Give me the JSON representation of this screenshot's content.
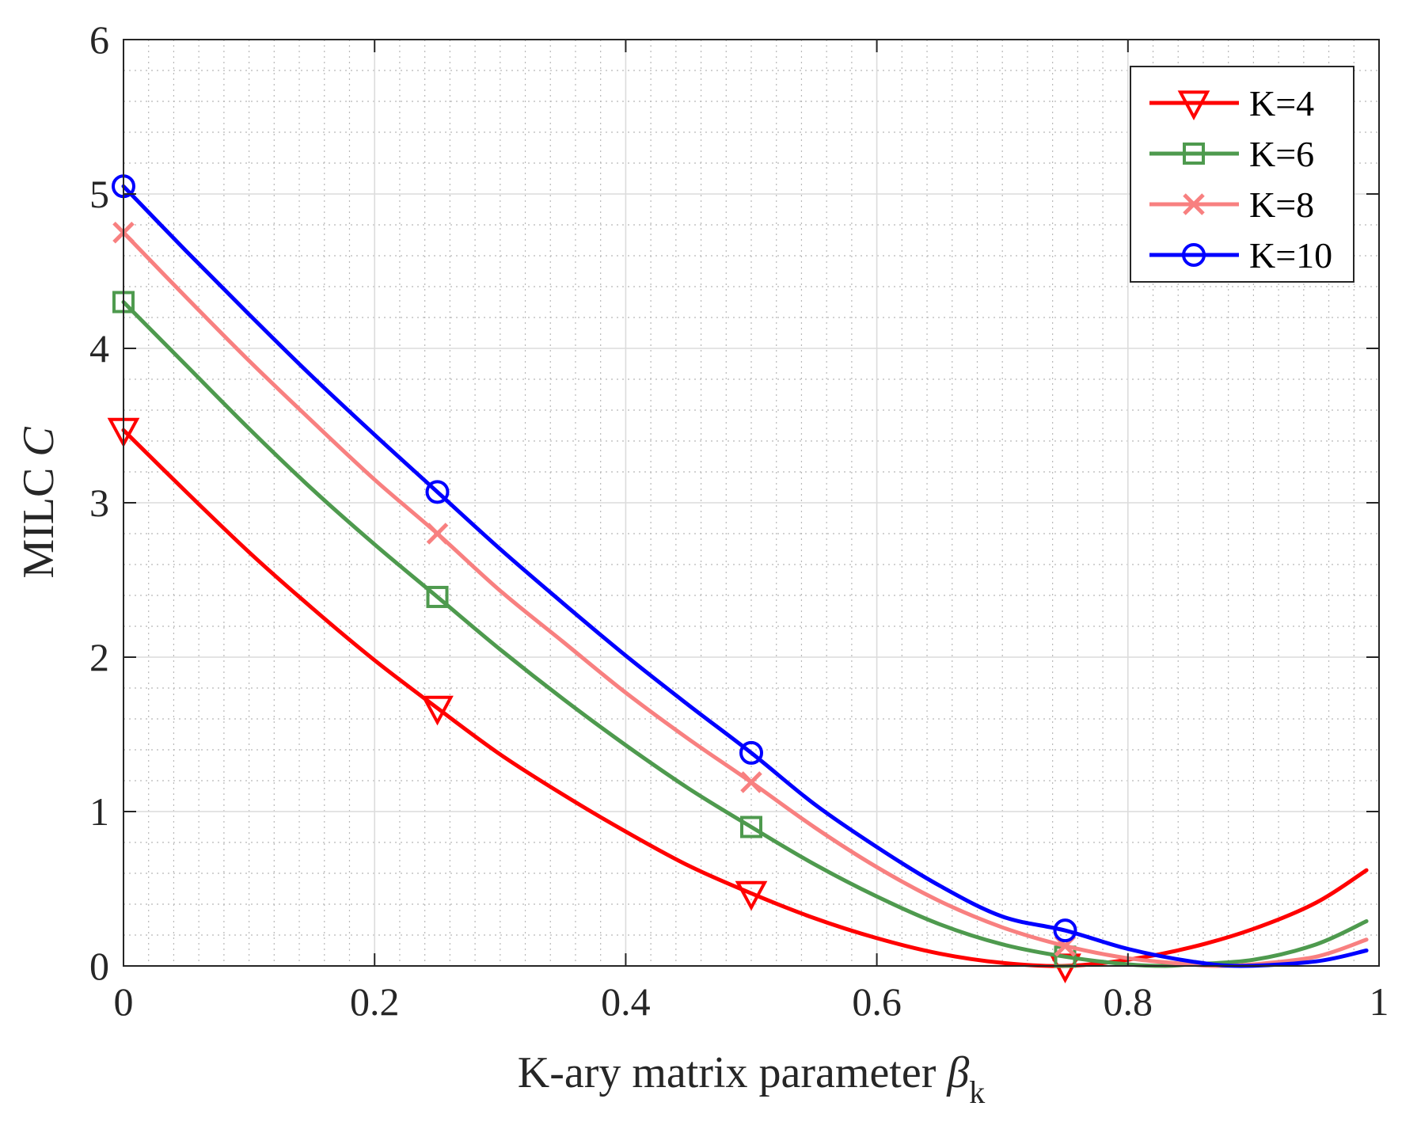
{
  "chart_data": {
    "type": "line",
    "title": "",
    "xlabel": {
      "text": "K-ary matrix parameter ",
      "symbol": "β",
      "subscript": "k"
    },
    "ylabel": {
      "text": "MILC ",
      "symbol": "C"
    },
    "xlim": [
      0,
      1
    ],
    "ylim": [
      0,
      6
    ],
    "xticks": [
      0,
      0.2,
      0.4,
      0.6,
      0.8,
      1
    ],
    "xtick_labels": [
      "0",
      "0.2",
      "0.4",
      "0.6",
      "0.8",
      "1"
    ],
    "yticks": [
      0,
      1,
      2,
      3,
      4,
      5,
      6
    ],
    "ytick_labels": [
      "0",
      "1",
      "2",
      "3",
      "4",
      "5",
      "6"
    ],
    "grid": true,
    "minor_grid": true,
    "legend_position": "top-right",
    "series": [
      {
        "name": "K=4",
        "color": "#ff0000",
        "marker": "triangle-down",
        "x": [
          0,
          0.05,
          0.1,
          0.15,
          0.2,
          0.25,
          0.3,
          0.35,
          0.4,
          0.45,
          0.5,
          0.55,
          0.6,
          0.65,
          0.7,
          0.75,
          0.8,
          0.85,
          0.9,
          0.95,
          0.99
        ],
        "y": [
          3.47,
          3.07,
          2.68,
          2.32,
          1.98,
          1.67,
          1.37,
          1.11,
          0.87,
          0.65,
          0.47,
          0.31,
          0.18,
          0.08,
          0.02,
          0.0,
          0.04,
          0.12,
          0.24,
          0.41,
          0.62
        ],
        "marker_x": [
          0,
          0.25,
          0.5,
          0.75
        ],
        "marker_y": [
          3.47,
          1.67,
          0.47,
          0.0
        ]
      },
      {
        "name": "K=6",
        "color": "#4e9a4e",
        "marker": "square",
        "x": [
          0,
          0.05,
          0.1,
          0.15,
          0.2,
          0.25,
          0.3,
          0.35,
          0.4,
          0.45,
          0.5,
          0.55,
          0.6,
          0.65,
          0.7,
          0.75,
          0.8,
          0.83,
          0.85,
          0.9,
          0.95,
          0.99
        ],
        "y": [
          4.3,
          3.89,
          3.48,
          3.09,
          2.73,
          2.39,
          2.05,
          1.73,
          1.43,
          1.15,
          0.9,
          0.66,
          0.45,
          0.27,
          0.14,
          0.06,
          0.01,
          0.0,
          0.01,
          0.04,
          0.14,
          0.29
        ],
        "marker_x": [
          0,
          0.25,
          0.5,
          0.75
        ],
        "marker_y": [
          4.3,
          2.39,
          0.9,
          0.06
        ]
      },
      {
        "name": "K=8",
        "color": "#f88080",
        "marker": "x",
        "x": [
          0,
          0.05,
          0.1,
          0.15,
          0.2,
          0.25,
          0.3,
          0.35,
          0.4,
          0.45,
          0.5,
          0.55,
          0.6,
          0.65,
          0.7,
          0.75,
          0.8,
          0.85,
          0.87,
          0.9,
          0.95,
          0.99
        ],
        "y": [
          4.75,
          4.33,
          3.92,
          3.53,
          3.15,
          2.8,
          2.43,
          2.1,
          1.77,
          1.47,
          1.19,
          0.9,
          0.64,
          0.42,
          0.25,
          0.13,
          0.05,
          0.01,
          0.0,
          0.01,
          0.06,
          0.17
        ],
        "marker_x": [
          0,
          0.25,
          0.5,
          0.75
        ],
        "marker_y": [
          4.75,
          2.8,
          1.19,
          0.13
        ]
      },
      {
        "name": "K=10",
        "color": "#0000ff",
        "marker": "circle",
        "x": [
          0,
          0.05,
          0.1,
          0.15,
          0.2,
          0.25,
          0.3,
          0.35,
          0.4,
          0.45,
          0.5,
          0.55,
          0.6,
          0.65,
          0.7,
          0.75,
          0.8,
          0.85,
          0.89,
          0.95,
          0.99
        ],
        "y": [
          5.05,
          4.63,
          4.22,
          3.82,
          3.44,
          3.07,
          2.7,
          2.35,
          2.01,
          1.69,
          1.38,
          1.05,
          0.77,
          0.52,
          0.32,
          0.23,
          0.11,
          0.03,
          0.0,
          0.03,
          0.1
        ],
        "marker_x": [
          0,
          0.25,
          0.5,
          0.75
        ],
        "marker_y": [
          5.05,
          3.07,
          1.38,
          0.23
        ]
      }
    ]
  }
}
